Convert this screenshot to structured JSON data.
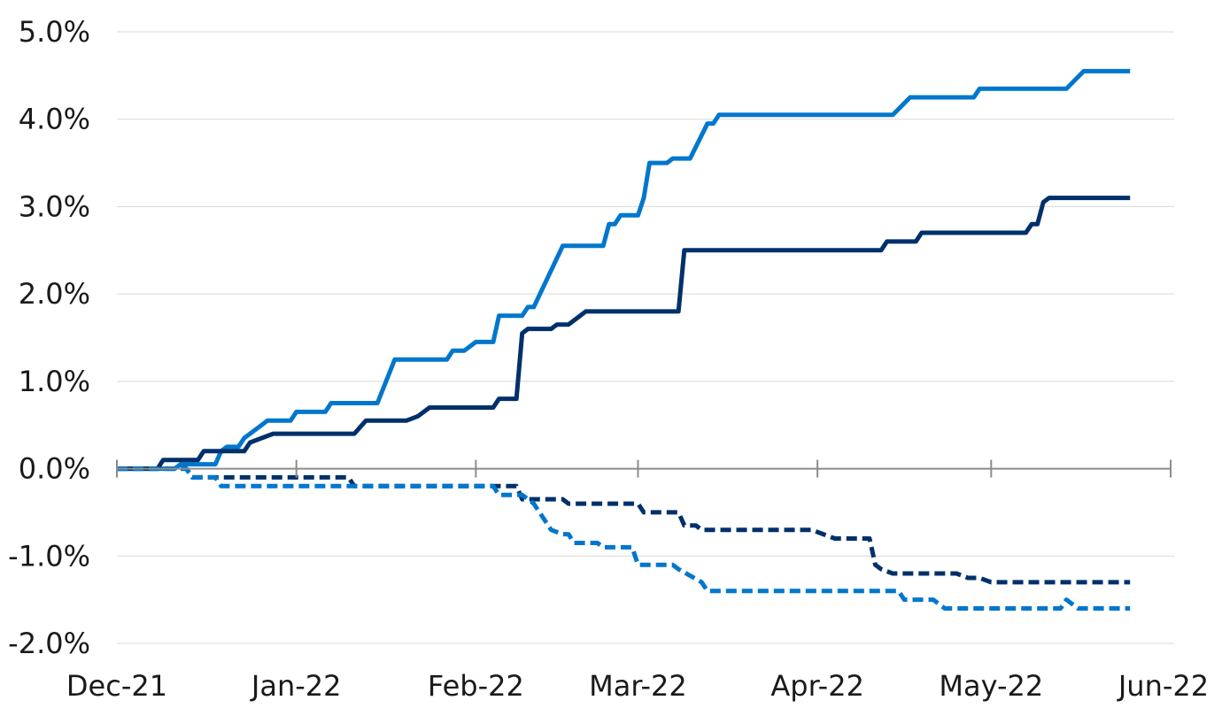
{
  "chart_data": {
    "type": "line",
    "title": "",
    "xlabel": "",
    "ylabel": "",
    "y_unit": "%",
    "ylim": [
      -2.0,
      5.0
    ],
    "y_ticks": [
      -2.0,
      -1.0,
      0.0,
      1.0,
      2.0,
      3.0,
      4.0,
      5.0
    ],
    "y_tick_labels": [
      "-2.0%",
      "-1.0%",
      "0.0%",
      "1.0%",
      "2.0%",
      "3.0%",
      "4.0%",
      "5.0%"
    ],
    "xlim": [
      "2021-12-01",
      "2022-06-01"
    ],
    "x_ticks": [
      "2021-12-01",
      "2022-01-01",
      "2022-02-01",
      "2022-03-01",
      "2022-04-01",
      "2022-05-01",
      "2022-06-01"
    ],
    "x_tick_labels": [
      "Dec-21",
      "Jan-22",
      "Feb-22",
      "Mar-22",
      "Apr-22",
      "May-22",
      "Jun-22"
    ],
    "grid": "horizontal",
    "legend": "none",
    "series": [
      {
        "color": "#0077CC",
        "style": "solid",
        "points": [
          [
            "2021-12-01",
            0.0
          ],
          [
            "2021-12-11",
            0.0
          ],
          [
            "2021-12-12",
            0.05
          ],
          [
            "2021-12-18",
            0.05
          ],
          [
            "2021-12-19",
            0.2
          ],
          [
            "2021-12-20",
            0.25
          ],
          [
            "2021-12-22",
            0.25
          ],
          [
            "2021-12-23",
            0.35
          ],
          [
            "2021-12-26",
            0.5
          ],
          [
            "2021-12-27",
            0.55
          ],
          [
            "2021-12-31",
            0.55
          ],
          [
            "2022-01-01",
            0.65
          ],
          [
            "2022-01-06",
            0.65
          ],
          [
            "2022-01-07",
            0.75
          ],
          [
            "2022-01-15",
            0.75
          ],
          [
            "2022-01-18",
            1.25
          ],
          [
            "2022-01-27",
            1.25
          ],
          [
            "2022-01-28",
            1.35
          ],
          [
            "2022-01-30",
            1.35
          ],
          [
            "2022-02-01",
            1.45
          ],
          [
            "2022-02-04",
            1.45
          ],
          [
            "2022-02-05",
            1.75
          ],
          [
            "2022-02-09",
            1.75
          ],
          [
            "2022-02-10",
            1.85
          ],
          [
            "2022-02-11",
            1.85
          ],
          [
            "2022-02-16",
            2.55
          ],
          [
            "2022-02-23",
            2.55
          ],
          [
            "2022-02-24",
            2.8
          ],
          [
            "2022-02-25",
            2.8
          ],
          [
            "2022-02-26",
            2.9
          ],
          [
            "2022-03-01",
            2.9
          ],
          [
            "2022-03-02",
            3.1
          ],
          [
            "2022-03-03",
            3.5
          ],
          [
            "2022-03-06",
            3.5
          ],
          [
            "2022-03-07",
            3.55
          ],
          [
            "2022-03-10",
            3.55
          ],
          [
            "2022-03-13",
            3.95
          ],
          [
            "2022-03-14",
            3.95
          ],
          [
            "2022-03-15",
            4.05
          ],
          [
            "2022-04-14",
            4.05
          ],
          [
            "2022-04-17",
            4.25
          ],
          [
            "2022-04-28",
            4.25
          ],
          [
            "2022-04-29",
            4.35
          ],
          [
            "2022-05-14",
            4.35
          ],
          [
            "2022-05-17",
            4.55
          ],
          [
            "2022-05-25",
            4.55
          ]
        ]
      },
      {
        "color": "#00306B",
        "style": "solid",
        "points": [
          [
            "2021-12-01",
            0.0
          ],
          [
            "2021-12-08",
            0.0
          ],
          [
            "2021-12-09",
            0.1
          ],
          [
            "2021-12-15",
            0.1
          ],
          [
            "2021-12-16",
            0.2
          ],
          [
            "2021-12-23",
            0.2
          ],
          [
            "2021-12-24",
            0.3
          ],
          [
            "2021-12-26",
            0.35
          ],
          [
            "2021-12-28",
            0.4
          ],
          [
            "2022-01-11",
            0.4
          ],
          [
            "2022-01-13",
            0.55
          ],
          [
            "2022-01-20",
            0.55
          ],
          [
            "2022-01-22",
            0.6
          ],
          [
            "2022-01-24",
            0.7
          ],
          [
            "2022-02-04",
            0.7
          ],
          [
            "2022-02-05",
            0.8
          ],
          [
            "2022-02-08",
            0.8
          ],
          [
            "2022-02-09",
            1.55
          ],
          [
            "2022-02-10",
            1.6
          ],
          [
            "2022-02-14",
            1.6
          ],
          [
            "2022-02-15",
            1.65
          ],
          [
            "2022-02-17",
            1.65
          ],
          [
            "2022-02-20",
            1.8
          ],
          [
            "2022-03-08",
            1.8
          ],
          [
            "2022-03-09",
            2.5
          ],
          [
            "2022-04-12",
            2.5
          ],
          [
            "2022-04-13",
            2.6
          ],
          [
            "2022-04-18",
            2.6
          ],
          [
            "2022-04-19",
            2.7
          ],
          [
            "2022-05-07",
            2.7
          ],
          [
            "2022-05-08",
            2.8
          ],
          [
            "2022-05-09",
            2.8
          ],
          [
            "2022-05-10",
            3.05
          ],
          [
            "2022-05-11",
            3.1
          ],
          [
            "2022-05-25",
            3.1
          ]
        ]
      },
      {
        "color": "#00306B",
        "style": "dashed",
        "points": [
          [
            "2021-12-01",
            0.0
          ],
          [
            "2021-12-13",
            0.0
          ],
          [
            "2021-12-14",
            -0.1
          ],
          [
            "2022-01-10",
            -0.1
          ],
          [
            "2022-01-11",
            -0.2
          ],
          [
            "2022-02-08",
            -0.2
          ],
          [
            "2022-02-09",
            -0.35
          ],
          [
            "2022-02-16",
            -0.35
          ],
          [
            "2022-02-17",
            -0.4
          ],
          [
            "2022-03-01",
            -0.4
          ],
          [
            "2022-03-02",
            -0.5
          ],
          [
            "2022-03-08",
            -0.5
          ],
          [
            "2022-03-09",
            -0.65
          ],
          [
            "2022-03-11",
            -0.65
          ],
          [
            "2022-03-12",
            -0.7
          ],
          [
            "2022-03-31",
            -0.7
          ],
          [
            "2022-04-02",
            -0.75
          ],
          [
            "2022-04-04",
            -0.8
          ],
          [
            "2022-04-10",
            -0.8
          ],
          [
            "2022-04-11",
            -1.1
          ],
          [
            "2022-04-12",
            -1.15
          ],
          [
            "2022-04-14",
            -1.2
          ],
          [
            "2022-04-25",
            -1.2
          ],
          [
            "2022-04-27",
            -1.25
          ],
          [
            "2022-04-29",
            -1.25
          ],
          [
            "2022-05-01",
            -1.3
          ],
          [
            "2022-05-25",
            -1.3
          ]
        ]
      },
      {
        "color": "#0077CC",
        "style": "dashed",
        "points": [
          [
            "2021-12-01",
            0.0
          ],
          [
            "2021-12-13",
            0.0
          ],
          [
            "2021-12-14",
            -0.1
          ],
          [
            "2021-12-18",
            -0.1
          ],
          [
            "2021-12-19",
            -0.2
          ],
          [
            "2022-02-04",
            -0.2
          ],
          [
            "2022-02-05",
            -0.3
          ],
          [
            "2022-02-09",
            -0.3
          ],
          [
            "2022-02-11",
            -0.4
          ],
          [
            "2022-02-14",
            -0.7
          ],
          [
            "2022-02-16",
            -0.75
          ],
          [
            "2022-02-17",
            -0.75
          ],
          [
            "2022-02-18",
            -0.85
          ],
          [
            "2022-02-22",
            -0.85
          ],
          [
            "2022-02-23",
            -0.9
          ],
          [
            "2022-02-28",
            -0.9
          ],
          [
            "2022-03-01",
            -1.1
          ],
          [
            "2022-03-07",
            -1.1
          ],
          [
            "2022-03-08",
            -1.15
          ],
          [
            "2022-03-12",
            -1.3
          ],
          [
            "2022-03-13",
            -1.4
          ],
          [
            "2022-04-15",
            -1.4
          ],
          [
            "2022-04-16",
            -1.5
          ],
          [
            "2022-04-21",
            -1.5
          ],
          [
            "2022-04-23",
            -1.6
          ],
          [
            "2022-05-13",
            -1.6
          ],
          [
            "2022-05-14",
            -1.5
          ],
          [
            "2022-05-16",
            -1.6
          ],
          [
            "2022-05-25",
            -1.6
          ]
        ]
      }
    ]
  }
}
